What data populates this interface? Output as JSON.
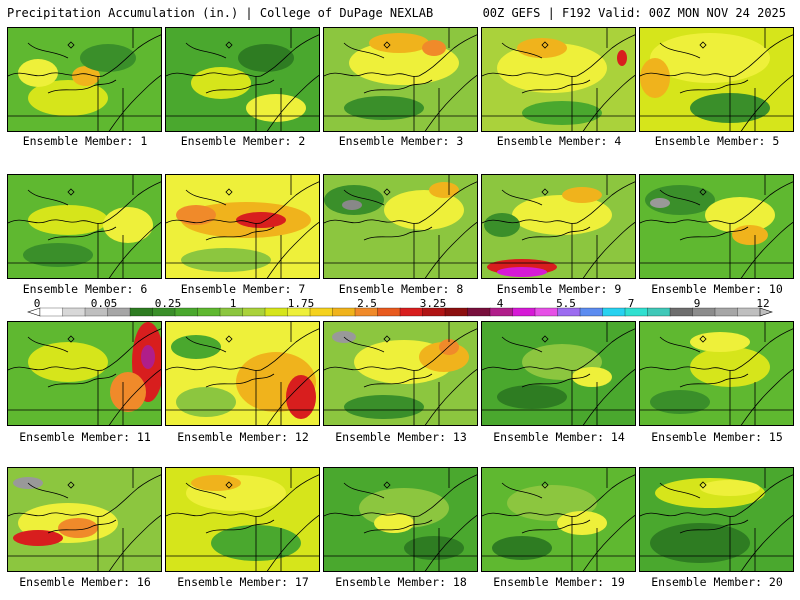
{
  "header": {
    "left_title": "Precipitation Accumulation (in.) | College of DuPage NEXLAB",
    "right_title": "00Z GEFS | F192 Valid: 00Z MON NOV 24 2025"
  },
  "panels": [
    {
      "label": "Ensemble Member: 1",
      "base": "#5fb830",
      "blobs": [
        {
          "c": "#d6e51b",
          "cx": 60,
          "cy": 70,
          "rx": 40,
          "ry": 18
        },
        {
          "c": "#f0b31c",
          "cx": 78,
          "cy": 48,
          "rx": 14,
          "ry": 10
        },
        {
          "c": "#3a8f2a",
          "cx": 100,
          "cy": 30,
          "rx": 28,
          "ry": 14
        },
        {
          "c": "#eef03a",
          "cx": 30,
          "cy": 45,
          "rx": 20,
          "ry": 14
        }
      ]
    },
    {
      "label": "Ensemble Member: 2",
      "base": "#4aa82e",
      "blobs": [
        {
          "c": "#d6e51b",
          "cx": 55,
          "cy": 55,
          "rx": 30,
          "ry": 16
        },
        {
          "c": "#eef03a",
          "cx": 110,
          "cy": 80,
          "rx": 30,
          "ry": 14
        },
        {
          "c": "#2e7c22",
          "cx": 100,
          "cy": 30,
          "rx": 28,
          "ry": 14
        }
      ]
    },
    {
      "label": "Ensemble Member: 3",
      "base": "#8cc63f",
      "blobs": [
        {
          "c": "#eef03a",
          "cx": 80,
          "cy": 35,
          "rx": 55,
          "ry": 22
        },
        {
          "c": "#f0b31c",
          "cx": 75,
          "cy": 15,
          "rx": 30,
          "ry": 10
        },
        {
          "c": "#f08a2a",
          "cx": 110,
          "cy": 20,
          "rx": 12,
          "ry": 8
        },
        {
          "c": "#3a8f2a",
          "cx": 60,
          "cy": 80,
          "rx": 40,
          "ry": 12
        }
      ]
    },
    {
      "label": "Ensemble Member: 4",
      "base": "#aad23b",
      "blobs": [
        {
          "c": "#eef03a",
          "cx": 70,
          "cy": 40,
          "rx": 55,
          "ry": 25
        },
        {
          "c": "#f0b31c",
          "cx": 60,
          "cy": 20,
          "rx": 25,
          "ry": 10
        },
        {
          "c": "#d81e1e",
          "cx": 140,
          "cy": 30,
          "rx": 5,
          "ry": 8
        },
        {
          "c": "#4aa82e",
          "cx": 80,
          "cy": 85,
          "rx": 40,
          "ry": 12
        }
      ]
    },
    {
      "label": "Ensemble Member: 5",
      "base": "#d6e51b",
      "blobs": [
        {
          "c": "#eef03a",
          "cx": 70,
          "cy": 30,
          "rx": 60,
          "ry": 25
        },
        {
          "c": "#f0b31c",
          "cx": 15,
          "cy": 50,
          "rx": 15,
          "ry": 20
        },
        {
          "c": "#3a8f2a",
          "cx": 90,
          "cy": 80,
          "rx": 40,
          "ry": 15
        }
      ]
    },
    {
      "label": "Ensemble Member: 6",
      "base": "#5fb830",
      "blobs": [
        {
          "c": "#d6e51b",
          "cx": 60,
          "cy": 45,
          "rx": 40,
          "ry": 15
        },
        {
          "c": "#eef03a",
          "cx": 120,
          "cy": 50,
          "rx": 25,
          "ry": 18
        },
        {
          "c": "#3a8f2a",
          "cx": 50,
          "cy": 80,
          "rx": 35,
          "ry": 12
        }
      ]
    },
    {
      "label": "Ensemble Member: 7",
      "base": "#eef03a",
      "blobs": [
        {
          "c": "#f0b31c",
          "cx": 80,
          "cy": 45,
          "rx": 65,
          "ry": 18
        },
        {
          "c": "#d81e1e",
          "cx": 95,
          "cy": 45,
          "rx": 25,
          "ry": 8
        },
        {
          "c": "#f08a2a",
          "cx": 30,
          "cy": 40,
          "rx": 20,
          "ry": 10
        },
        {
          "c": "#8cc63f",
          "cx": 60,
          "cy": 85,
          "rx": 45,
          "ry": 12
        }
      ]
    },
    {
      "label": "Ensemble Member: 8",
      "base": "#8cc63f",
      "blobs": [
        {
          "c": "#3a8f2a",
          "cx": 30,
          "cy": 25,
          "rx": 30,
          "ry": 15
        },
        {
          "c": "#888888",
          "cx": 28,
          "cy": 30,
          "rx": 10,
          "ry": 5
        },
        {
          "c": "#eef03a",
          "cx": 100,
          "cy": 35,
          "rx": 40,
          "ry": 20
        },
        {
          "c": "#f0b31c",
          "cx": 120,
          "cy": 15,
          "rx": 15,
          "ry": 8
        }
      ]
    },
    {
      "label": "Ensemble Member: 9",
      "base": "#8cc63f",
      "blobs": [
        {
          "c": "#eef03a",
          "cx": 80,
          "cy": 40,
          "rx": 50,
          "ry": 20
        },
        {
          "c": "#f0b31c",
          "cx": 100,
          "cy": 20,
          "rx": 20,
          "ry": 8
        },
        {
          "c": "#d81e1e",
          "cx": 40,
          "cy": 92,
          "rx": 35,
          "ry": 8
        },
        {
          "c": "#d61ad6",
          "cx": 40,
          "cy": 97,
          "rx": 25,
          "ry": 5
        },
        {
          "c": "#3a8f2a",
          "cx": 20,
          "cy": 50,
          "rx": 18,
          "ry": 12
        }
      ]
    },
    {
      "label": "Ensemble Member: 10",
      "base": "#5fb830",
      "blobs": [
        {
          "c": "#3a8f2a",
          "cx": 40,
          "cy": 25,
          "rx": 35,
          "ry": 15
        },
        {
          "c": "#999999",
          "cx": 20,
          "cy": 28,
          "rx": 10,
          "ry": 5
        },
        {
          "c": "#eef03a",
          "cx": 100,
          "cy": 40,
          "rx": 35,
          "ry": 18
        },
        {
          "c": "#f0b31c",
          "cx": 110,
          "cy": 60,
          "rx": 18,
          "ry": 10
        }
      ]
    },
    {
      "label": "Ensemble Member: 11",
      "base": "#5fb830",
      "blobs": [
        {
          "c": "#d6e51b",
          "cx": 60,
          "cy": 40,
          "rx": 40,
          "ry": 20
        },
        {
          "c": "#d81e1e",
          "cx": 140,
          "cy": 40,
          "rx": 16,
          "ry": 40
        },
        {
          "c": "#b01e8a",
          "cx": 140,
          "cy": 35,
          "rx": 7,
          "ry": 12
        },
        {
          "c": "#f08a2a",
          "cx": 120,
          "cy": 70,
          "rx": 18,
          "ry": 20
        }
      ]
    },
    {
      "label": "Ensemble Member: 12",
      "base": "#eef03a",
      "blobs": [
        {
          "c": "#f0b31c",
          "cx": 110,
          "cy": 60,
          "rx": 40,
          "ry": 30
        },
        {
          "c": "#d81e1e",
          "cx": 135,
          "cy": 75,
          "rx": 15,
          "ry": 22
        },
        {
          "c": "#8cc63f",
          "cx": 40,
          "cy": 80,
          "rx": 30,
          "ry": 15
        },
        {
          "c": "#4aa82e",
          "cx": 30,
          "cy": 25,
          "rx": 25,
          "ry": 12
        }
      ]
    },
    {
      "label": "Ensemble Member: 13",
      "base": "#8cc63f",
      "blobs": [
        {
          "c": "#eef03a",
          "cx": 80,
          "cy": 40,
          "rx": 50,
          "ry": 22
        },
        {
          "c": "#f0b31c",
          "cx": 120,
          "cy": 35,
          "rx": 25,
          "ry": 15
        },
        {
          "c": "#f08a2a",
          "cx": 125,
          "cy": 25,
          "rx": 10,
          "ry": 8
        },
        {
          "c": "#999999",
          "cx": 20,
          "cy": 15,
          "rx": 12,
          "ry": 6
        },
        {
          "c": "#3a8f2a",
          "cx": 60,
          "cy": 85,
          "rx": 40,
          "ry": 12
        }
      ]
    },
    {
      "label": "Ensemble Member: 14",
      "base": "#4aa82e",
      "blobs": [
        {
          "c": "#8cc63f",
          "cx": 80,
          "cy": 40,
          "rx": 40,
          "ry": 18
        },
        {
          "c": "#eef03a",
          "cx": 110,
          "cy": 55,
          "rx": 20,
          "ry": 10
        },
        {
          "c": "#2e7c22",
          "cx": 50,
          "cy": 75,
          "rx": 35,
          "ry": 12
        }
      ]
    },
    {
      "label": "Ensemble Member: 15",
      "base": "#5fb830",
      "blobs": [
        {
          "c": "#d6e51b",
          "cx": 90,
          "cy": 45,
          "rx": 40,
          "ry": 20
        },
        {
          "c": "#eef03a",
          "cx": 80,
          "cy": 20,
          "rx": 30,
          "ry": 10
        },
        {
          "c": "#3a8f2a",
          "cx": 40,
          "cy": 80,
          "rx": 30,
          "ry": 12
        }
      ]
    },
    {
      "label": "Ensemble Member: 16",
      "base": "#8cc63f",
      "blobs": [
        {
          "c": "#eef03a",
          "cx": 60,
          "cy": 55,
          "rx": 50,
          "ry": 20
        },
        {
          "c": "#d81e1e",
          "cx": 30,
          "cy": 70,
          "rx": 25,
          "ry": 8
        },
        {
          "c": "#f08a2a",
          "cx": 70,
          "cy": 60,
          "rx": 20,
          "ry": 10
        },
        {
          "c": "#999999",
          "cx": 20,
          "cy": 15,
          "rx": 15,
          "ry": 6
        }
      ]
    },
    {
      "label": "Ensemble Member: 17",
      "base": "#d6e51b",
      "blobs": [
        {
          "c": "#eef03a",
          "cx": 70,
          "cy": 25,
          "rx": 50,
          "ry": 18
        },
        {
          "c": "#f0b31c",
          "cx": 50,
          "cy": 15,
          "rx": 25,
          "ry": 8
        },
        {
          "c": "#4aa82e",
          "cx": 90,
          "cy": 75,
          "rx": 45,
          "ry": 18
        }
      ]
    },
    {
      "label": "Ensemble Member: 18",
      "base": "#4aa82e",
      "blobs": [
        {
          "c": "#8cc63f",
          "cx": 80,
          "cy": 40,
          "rx": 45,
          "ry": 20
        },
        {
          "c": "#eef03a",
          "cx": 70,
          "cy": 55,
          "rx": 20,
          "ry": 10
        },
        {
          "c": "#2e7c22",
          "cx": 110,
          "cy": 80,
          "rx": 30,
          "ry": 12
        }
      ]
    },
    {
      "label": "Ensemble Member: 19",
      "base": "#5fb830",
      "blobs": [
        {
          "c": "#8cc63f",
          "cx": 70,
          "cy": 35,
          "rx": 45,
          "ry": 18
        },
        {
          "c": "#eef03a",
          "cx": 100,
          "cy": 55,
          "rx": 25,
          "ry": 12
        },
        {
          "c": "#2e7c22",
          "cx": 40,
          "cy": 80,
          "rx": 30,
          "ry": 12
        }
      ]
    },
    {
      "label": "Ensemble Member: 20",
      "base": "#4aa82e",
      "blobs": [
        {
          "c": "#d6e51b",
          "cx": 70,
          "cy": 25,
          "rx": 55,
          "ry": 15
        },
        {
          "c": "#eef03a",
          "cx": 90,
          "cy": 20,
          "rx": 30,
          "ry": 8
        },
        {
          "c": "#2e7c22",
          "cx": 60,
          "cy": 75,
          "rx": 50,
          "ry": 20
        }
      ]
    }
  ],
  "colorbar": {
    "labels": [
      "0",
      "0.05",
      "0.25",
      "1",
      "1.75",
      "2.5",
      "3.25",
      "4",
      "5.5",
      "7",
      "9",
      "12"
    ],
    "colors": [
      "#ffffff",
      "#d8d8d8",
      "#bfbfbf",
      "#a6a6a6",
      "#2e7c22",
      "#3a8f2a",
      "#4aa82e",
      "#5fb830",
      "#8cc63f",
      "#aad23b",
      "#d6e51b",
      "#eef03a",
      "#f5d21e",
      "#f0b31c",
      "#f08a2a",
      "#e85a1e",
      "#d81e1e",
      "#b01414",
      "#8c0f0f",
      "#780f3c",
      "#b01e8a",
      "#d61ad6",
      "#e650e6",
      "#9c6cf0",
      "#5c8cf0",
      "#28d2f0",
      "#30e0d0",
      "#40c8b8",
      "#6e6e6e",
      "#8c8c8c",
      "#a6a6a6",
      "#bfbfbf"
    ]
  }
}
